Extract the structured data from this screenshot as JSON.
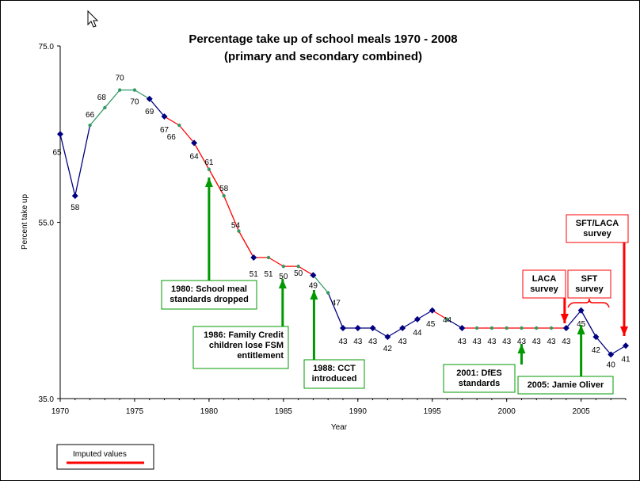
{
  "chart_data": {
    "type": "line",
    "title": "Percentage take up of school meals 1970 - 2008",
    "subtitle": "(primary and secondary combined)",
    "xlabel": "Year",
    "ylabel": "Percent take up",
    "xlim": [
      1970,
      2008
    ],
    "ylim": [
      35,
      75
    ],
    "x_ticks": [
      "1970",
      "1975",
      "1980",
      "1985",
      "1990",
      "1995",
      "2000",
      "2005"
    ],
    "y_ticks": [
      "75.0",
      "55.0",
      "35.0"
    ],
    "grid": false,
    "legend": {
      "placement": "bottom-left",
      "entries": [
        "Imputed values"
      ]
    },
    "points": [
      {
        "x": 1970,
        "y": 65,
        "label": "65",
        "imputed": false
      },
      {
        "x": 1971,
        "y": 58,
        "label": "58",
        "imputed": false
      },
      {
        "x": 1972,
        "y": 66,
        "label": "66",
        "imputed": true
      },
      {
        "x": 1973,
        "y": 68,
        "label": "68",
        "imputed": true
      },
      {
        "x": 1974,
        "y": 70,
        "label": "70",
        "imputed": true
      },
      {
        "x": 1975,
        "y": 70,
        "label": "70",
        "imputed": true
      },
      {
        "x": 1976,
        "y": 69,
        "label": "69",
        "imputed": false
      },
      {
        "x": 1977,
        "y": 67,
        "label": "67",
        "imputed": false
      },
      {
        "x": 1978,
        "y": 66,
        "label": "66",
        "imputed": true
      },
      {
        "x": 1979,
        "y": 64,
        "label": "64",
        "imputed": false
      },
      {
        "x": 1980,
        "y": 61,
        "label": "61",
        "imputed": true
      },
      {
        "x": 1981,
        "y": 58,
        "label": "58",
        "imputed": true
      },
      {
        "x": 1982,
        "y": 54,
        "label": "54",
        "imputed": true
      },
      {
        "x": 1983,
        "y": 51,
        "label": "51",
        "imputed": false
      },
      {
        "x": 1984,
        "y": 51,
        "label": "51",
        "imputed": true
      },
      {
        "x": 1985,
        "y": 50,
        "label": "50",
        "imputed": true
      },
      {
        "x": 1986,
        "y": 50,
        "label": "50",
        "imputed": true
      },
      {
        "x": 1987,
        "y": 49,
        "label": "49",
        "imputed": false
      },
      {
        "x": 1988,
        "y": 47,
        "label": "47",
        "imputed": true
      },
      {
        "x": 1989,
        "y": 43,
        "label": "43",
        "imputed": false
      },
      {
        "x": 1990,
        "y": 43,
        "label": "43",
        "imputed": false
      },
      {
        "x": 1991,
        "y": 43,
        "label": "43",
        "imputed": false
      },
      {
        "x": 1992,
        "y": 42,
        "label": "42",
        "imputed": false
      },
      {
        "x": 1993,
        "y": 43,
        "label": "43",
        "imputed": false
      },
      {
        "x": 1994,
        "y": 44,
        "label": "44",
        "imputed": false
      },
      {
        "x": 1995,
        "y": 45,
        "label": "45",
        "imputed": false
      },
      {
        "x": 1996,
        "y": 44,
        "label": "44",
        "imputed": true
      },
      {
        "x": 1997,
        "y": 43,
        "label": "43",
        "imputed": false
      },
      {
        "x": 1998,
        "y": 43,
        "label": "43",
        "imputed": true
      },
      {
        "x": 1999,
        "y": 43,
        "label": "43",
        "imputed": true
      },
      {
        "x": 2000,
        "y": 43,
        "label": "43",
        "imputed": true
      },
      {
        "x": 2001,
        "y": 43,
        "label": "43",
        "imputed": true
      },
      {
        "x": 2002,
        "y": 43,
        "label": "43",
        "imputed": true
      },
      {
        "x": 2003,
        "y": 43,
        "label": "43",
        "imputed": true
      },
      {
        "x": 2004,
        "y": 43,
        "label": "43",
        "imputed": false
      },
      {
        "x": 2005,
        "y": 45,
        "label": "45",
        "imputed": false
      },
      {
        "x": 2006,
        "y": 42,
        "label": "42",
        "imputed": false
      },
      {
        "x": 2007,
        "y": 40,
        "label": "40",
        "imputed": false
      },
      {
        "x": 2008,
        "y": 41,
        "label": "41",
        "imputed": false
      }
    ],
    "annotations": [
      {
        "lines": [
          "1980: School meal",
          "standards dropped"
        ],
        "year": 1980,
        "color": "#009900"
      },
      {
        "lines": [
          "1986: Family Credit",
          "children lose FSM",
          "entitlement"
        ],
        "year": 1985,
        "color": "#009900"
      },
      {
        "lines": [
          "1988: CCT",
          "introduced"
        ],
        "year": 1987,
        "color": "#009900"
      },
      {
        "lines": [
          "2001: DfES",
          "standards"
        ],
        "year": 2001,
        "color": "#009900"
      },
      {
        "lines": [
          "2005: Jamie Oliver"
        ],
        "year": 2005,
        "color": "#009900"
      },
      {
        "lines": [
          "LACA",
          "survey"
        ],
        "year": 2004,
        "color": "#ff0000"
      },
      {
        "lines": [
          "SFT",
          "survey"
        ],
        "year": 2006,
        "color": "#ff0000"
      },
      {
        "lines": [
          "SFT/LACA",
          "survey"
        ],
        "year": 2008,
        "color": "#ff0000"
      }
    ]
  },
  "colors": {
    "series_line": "#000080",
    "marker": "#000080",
    "imputed_line": "#ff0000",
    "imputed_marker": "#339966",
    "imputed_segment_teal": "#339966",
    "annotation_green": "#009900",
    "annotation_red": "#ff0000"
  },
  "icons": {
    "cursor": "mouse-pointer-icon"
  }
}
